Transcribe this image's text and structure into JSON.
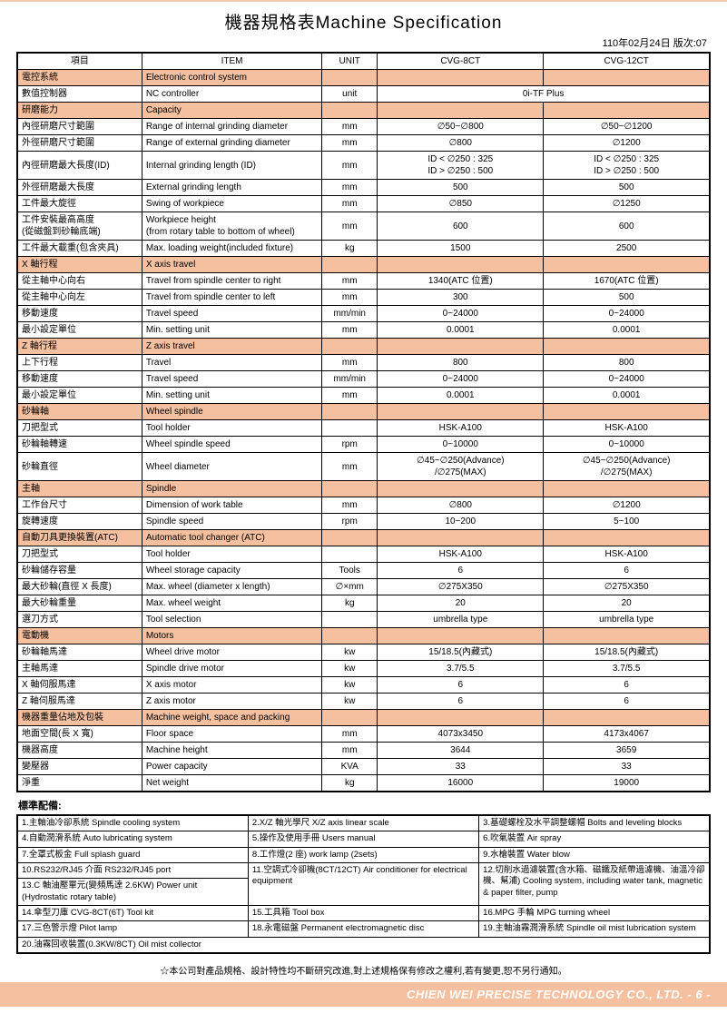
{
  "title": "機器規格表Machine Specification",
  "date": "110年02月24日 版次:07",
  "headers": {
    "c1": "項目",
    "c2": "ITEM",
    "c3": "UNIT",
    "c4": "CVG-8CT",
    "c5": "CVG-12CT"
  },
  "sections": [
    {
      "type": "section",
      "zh": "電控系統",
      "en": "Electronic control system"
    },
    {
      "type": "row",
      "zh": "數值控制器",
      "en": "NC controller",
      "unit": "unit",
      "v": "0i-TF Plus",
      "merged": true
    },
    {
      "type": "section",
      "zh": "研磨能力",
      "en": "Capacity"
    },
    {
      "type": "row",
      "zh": "內徑研磨尺寸範圍",
      "en": "Range of internal grinding diameter",
      "unit": "mm",
      "v1": "∅50~∅800",
      "v2": "∅50~∅1200"
    },
    {
      "type": "row",
      "zh": "外徑研磨尺寸範圍",
      "en": "Range of external grinding diameter",
      "unit": "mm",
      "v1": "∅800",
      "v2": "∅1200"
    },
    {
      "type": "row",
      "tall": true,
      "zh": "內徑研磨最大長度(ID)",
      "en": "Internal grinding length (ID)",
      "unit": "mm",
      "v1": "ID < ∅250 : 325\nID > ∅250 : 500",
      "v2": "ID < ∅250 : 325\nID > ∅250 : 500"
    },
    {
      "type": "row",
      "zh": "外徑研磨最大長度",
      "en": "External grinding length",
      "unit": "mm",
      "v1": "500",
      "v2": "500"
    },
    {
      "type": "row",
      "zh": "工件最大旋徑",
      "en": "Swing of workpiece",
      "unit": "mm",
      "v1": "∅850",
      "v2": "∅1250"
    },
    {
      "type": "row",
      "tall": true,
      "zh": "工件安裝最高高度\n(從磁盤到砂輪底端)",
      "en": "Workpiece height\n(from rotary table to bottom of wheel)",
      "unit": "mm",
      "v1": "600",
      "v2": "600"
    },
    {
      "type": "row",
      "zh": "工件最大載重(包含夾具)",
      "en": "Max. loading weight(included fixture)",
      "unit": "kg",
      "v1": "1500",
      "v2": "2500"
    },
    {
      "type": "section",
      "zh": "X 軸行程",
      "en": "X axis travel"
    },
    {
      "type": "row",
      "zh": "從主軸中心向右",
      "en": "Travel from spindle center to right",
      "unit": "mm",
      "v1": "1340(ATC 位置)",
      "v2": "1670(ATC 位置)"
    },
    {
      "type": "row",
      "zh": "從主軸中心向左",
      "en": "Travel from spindle center to left",
      "unit": "mm",
      "v1": "300",
      "v2": "500"
    },
    {
      "type": "row",
      "zh": "移動速度",
      "en": "Travel speed",
      "unit": "mm/min",
      "v1": "0~24000",
      "v2": "0~24000"
    },
    {
      "type": "row",
      "zh": "最小設定單位",
      "en": "Min. setting unit",
      "unit": "mm",
      "v1": "0.0001",
      "v2": "0.0001"
    },
    {
      "type": "section",
      "zh": "Z 軸行程",
      "en": "Z axis travel"
    },
    {
      "type": "row",
      "zh": "上下行程",
      "en": "Travel",
      "unit": "mm",
      "v1": "800",
      "v2": "800"
    },
    {
      "type": "row",
      "zh": "移動速度",
      "en": "Travel speed",
      "unit": "mm/min",
      "v1": "0~24000",
      "v2": "0~24000"
    },
    {
      "type": "row",
      "zh": "最小設定單位",
      "en": "Min. setting unit",
      "unit": "mm",
      "v1": "0.0001",
      "v2": "0.0001"
    },
    {
      "type": "section",
      "zh": "砂輪軸",
      "en": "Wheel spindle"
    },
    {
      "type": "row",
      "zh": "刀把型式",
      "en": "Tool holder",
      "unit": "",
      "v1": "HSK-A100",
      "v2": "HSK-A100"
    },
    {
      "type": "row",
      "zh": "砂輪軸轉速",
      "en": "Wheel spindle speed",
      "unit": "rpm",
      "v1": "0~10000",
      "v2": "0~10000"
    },
    {
      "type": "row",
      "tall": true,
      "zh": "砂輪直徑",
      "en": "Wheel diameter",
      "unit": "mm",
      "v1": "∅45~∅250(Advance)\n/∅275(MAX)",
      "v2": "∅45~∅250(Advance)\n/∅275(MAX)"
    },
    {
      "type": "section",
      "zh": "主軸",
      "en": "Spindle"
    },
    {
      "type": "row",
      "zh": "工作台尺寸",
      "en": "Dimension of work table",
      "unit": "mm",
      "v1": "∅800",
      "v2": "∅1200"
    },
    {
      "type": "row",
      "zh": "旋轉速度",
      "en": "Spindle speed",
      "unit": "rpm",
      "v1": "10~200",
      "v2": "5~100"
    },
    {
      "type": "section",
      "zh": "自動刀具更換裝置(ATC)",
      "en": "Automatic tool changer (ATC)"
    },
    {
      "type": "row",
      "zh": "刀把型式",
      "en": "Tool holder",
      "unit": "",
      "v1": "HSK-A100",
      "v2": "HSK-A100"
    },
    {
      "type": "row",
      "zh": "砂輪儲存容量",
      "en": "Wheel storage capacity",
      "unit": "Tools",
      "v1": "6",
      "v2": "6"
    },
    {
      "type": "row",
      "zh": "最大砂輪(直徑 X 長度)",
      "en": "Max. wheel (diameter x length)",
      "unit": "∅×mm",
      "v1": "∅275X350",
      "v2": "∅275X350"
    },
    {
      "type": "row",
      "zh": "最大砂輪重量",
      "en": "Max. wheel weight",
      "unit": "kg",
      "v1": "20",
      "v2": "20"
    },
    {
      "type": "row",
      "zh": "選刀方式",
      "en": "Tool selection",
      "unit": "",
      "v1": "umbrella type",
      "v2": "umbrella type"
    },
    {
      "type": "section",
      "zh": "電動機",
      "en": "Motors"
    },
    {
      "type": "row",
      "zh": "砂輪軸馬達",
      "en": "Wheel drive motor",
      "unit": "kw",
      "v1": "15/18.5(內藏式)",
      "v2": "15/18.5(內藏式)"
    },
    {
      "type": "row",
      "zh": "主軸馬達",
      "en": "Spindle drive motor",
      "unit": "kw",
      "v1": "3.7/5.5",
      "v2": "3.7/5.5"
    },
    {
      "type": "row",
      "zh": "X 軸伺服馬達",
      "en": "X axis motor",
      "unit": "kw",
      "v1": "6",
      "v2": "6"
    },
    {
      "type": "row",
      "zh": "Z 軸伺服馬達",
      "en": "Z axis motor",
      "unit": "kw",
      "v1": "6",
      "v2": "6"
    },
    {
      "type": "section",
      "zh": "機器重量佔地及包裝",
      "en": "Machine weight, space and packing"
    },
    {
      "type": "row",
      "zh": "地面空間(長 X 寬)",
      "en": "Floor space",
      "unit": "mm",
      "v1": "4073x3450",
      "v2": "4173x4067"
    },
    {
      "type": "row",
      "zh": "機器高度",
      "en": "Machine height",
      "unit": "mm",
      "v1": "3644",
      "v2": "3659"
    },
    {
      "type": "row",
      "zh": "變壓器",
      "en": "Power capacity",
      "unit": "KVA",
      "v1": "33",
      "v2": "33"
    },
    {
      "type": "row",
      "zh": "淨重",
      "en": "Net weight",
      "unit": "kg",
      "v1": "16000",
      "v2": "19000"
    }
  ],
  "accessories_title": "標準配備:",
  "accessories": [
    [
      "1.主軸油冷卻系統 Spindle cooling system",
      "2.X/Z 軸光學尺 X/Z axis linear scale",
      "3.基礎螺栓及水平調整螺帽 Bolts and leveling blocks"
    ],
    [
      "4.自動潤滑系統 Auto lubricating system",
      "5.操作及使用手冊 Users manual",
      "6.吹氣裝置 Air spray"
    ],
    [
      "7.全罩式板金 Full splash guard",
      "8.工作燈(2 座) work lamp (2sets)",
      "9.水槍裝置 Water blow"
    ],
    [
      "10.RS232/RJ45 介面 RS232/RJ45 port",
      "11.空調式冷卻機(8CT/12CT) Air conditioner for electrical equipment",
      "12.切削水過濾裝置(含水箱、磁鐵及紙帶過濾機、油溫冷卻機、幫浦) Cooling system, including water tank, magnetic & paper filter, pump"
    ],
    [
      "13.C 軸油壓單元(變頻馬達 2.6KW) Power unit (Hydrostatic rotary table)",
      "",
      ""
    ],
    [
      "14.傘型刀庫 CVG-8CT(6T) Tool kit",
      "15.工具箱 Tool box",
      "16.MPG 手輪 MPG turning wheel"
    ],
    [
      "17.三色警示燈 Pilot lamp",
      "18.永電磁盤 Permanent electromagnetic disc",
      "19.主軸油霧潤滑系統 Spindle oil mist lubrication system"
    ],
    [
      "20.油霧回收裝置(0.3KW/8CT) Oil mist collector",
      "",
      ""
    ]
  ],
  "note": "☆本公司對產品規格、設計特性均不斷研究改進,對上述規格保有修改之權利,若有變更,恕不另行通知。",
  "footer": "CHIEN WEI PRECISE TECHNOLOGY CO., LTD. - 6 -"
}
